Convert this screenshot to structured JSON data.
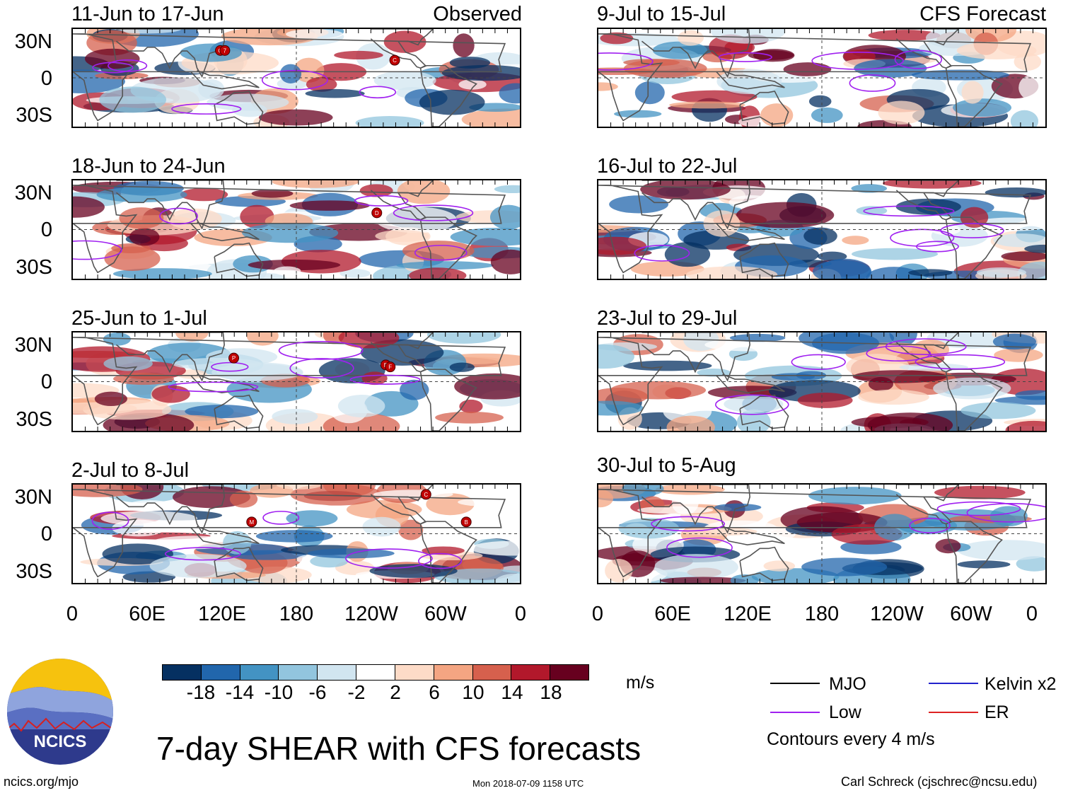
{
  "panels": [
    {
      "id": "obs1",
      "date": "11-Jun to 17-Jun",
      "tag": "Observed"
    },
    {
      "id": "obs2",
      "date": "18-Jun to 24-Jun",
      "tag": ""
    },
    {
      "id": "obs3",
      "date": "25-Jun to 1-Jul",
      "tag": ""
    },
    {
      "id": "obs4",
      "date": "2-Jul to 8-Jul",
      "tag": ""
    },
    {
      "id": "cfs1",
      "date": "9-Jul to 15-Jul",
      "tag": "CFS Forecast"
    },
    {
      "id": "cfs2",
      "date": "16-Jul to 22-Jul",
      "tag": ""
    },
    {
      "id": "cfs3",
      "date": "23-Jul to 29-Jul",
      "tag": ""
    },
    {
      "id": "cfs4",
      "date": "30-Jul to 5-Aug",
      "tag": ""
    }
  ],
  "axes": {
    "ylabels": [
      "30N",
      "0",
      "30S"
    ],
    "xlabels": [
      "0",
      "60E",
      "120E",
      "180",
      "120W",
      "60W",
      "0"
    ]
  },
  "colorbar": {
    "ticks": [
      "-18",
      "-14",
      "-10",
      "-6",
      "-2",
      "2",
      "6",
      "10",
      "14",
      "18"
    ],
    "colors": [
      "#053061",
      "#2166ac",
      "#4393c3",
      "#92c5de",
      "#d1e5f0",
      "#ffffff",
      "#fddbc7",
      "#f4a582",
      "#d6604d",
      "#b2182b",
      "#67001f"
    ],
    "units": "m/s"
  },
  "legend": {
    "mjo": "MJO",
    "kelvin": "Kelvin x2",
    "low": "Low",
    "er": "ER",
    "contours": "Contours every 4 m/s",
    "colors": {
      "mjo": "#000000",
      "kelvin": "#2222cc",
      "low": "#a020f0",
      "er": "#dd2222"
    }
  },
  "title": "7-day SHEAR with CFS forecasts",
  "footer": {
    "left": "ncics.org/mjo",
    "center": "Mon 2018-07-09 1158 UTC",
    "right": "Carl Schreck (cjschrec@ncsu.edu)"
  },
  "logo": {
    "text": "NCICS"
  },
  "storms": {
    "obs1": [
      "G",
      "7",
      "C"
    ],
    "obs2": [
      "D"
    ],
    "obs3": [
      "P",
      "E",
      "F"
    ],
    "obs4": [
      "M",
      "C",
      "B"
    ]
  }
}
